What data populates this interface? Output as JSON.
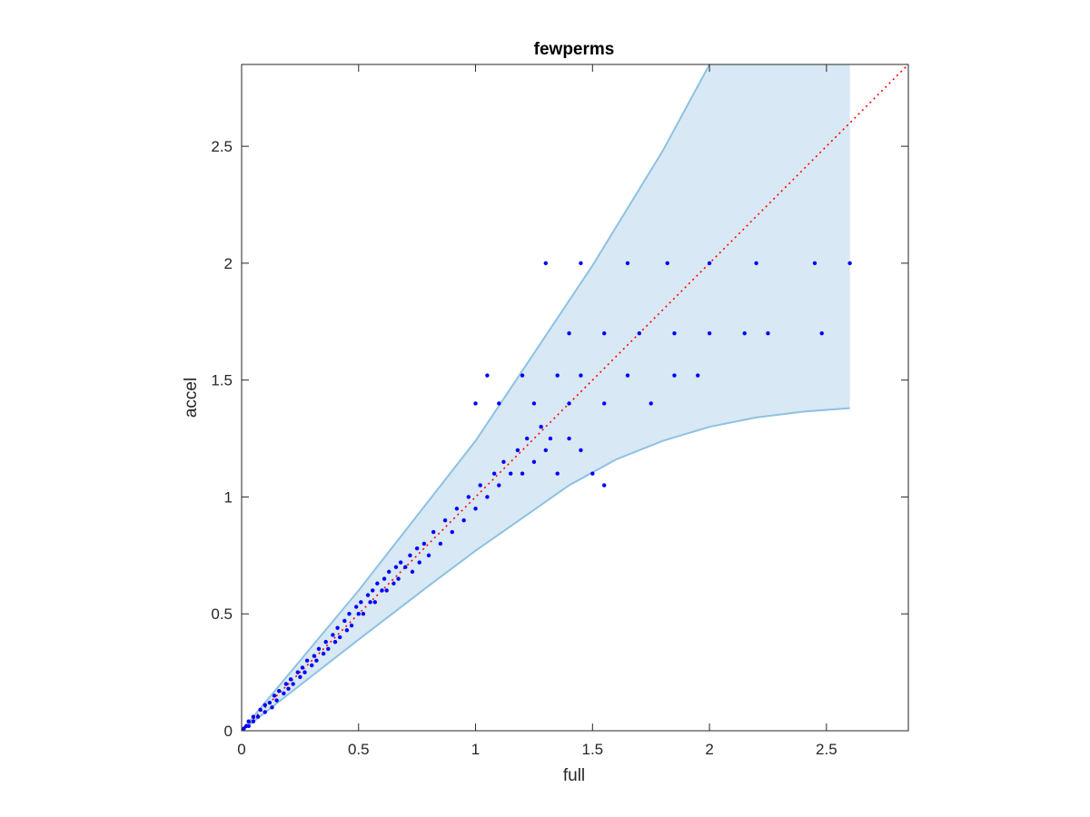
{
  "chart_data": {
    "type": "scatter",
    "title": "fewperms",
    "xlabel": "full",
    "ylabel": "accel",
    "xlim": [
      0,
      2.85
    ],
    "ylim": [
      0,
      2.85
    ],
    "xticks": [
      0,
      0.5,
      1,
      1.5,
      2,
      2.5
    ],
    "yticks": [
      0,
      0.5,
      1,
      1.5,
      2,
      2.5
    ],
    "xtick_labels": [
      "0",
      "0.5",
      "1",
      "1.5",
      "2",
      "2.5"
    ],
    "ytick_labels": [
      "0",
      "0.5",
      "1",
      "1.5",
      "2",
      "2.5"
    ],
    "grid": false,
    "colors": {
      "points": "#0000ff",
      "band_fill": "#d8e8f4",
      "band_edge": "#8ec1e3",
      "reference_line": "#ff0000",
      "axes": "#262626"
    },
    "band": {
      "upper": [
        [
          0,
          0
        ],
        [
          0.5,
          0.6
        ],
        [
          1,
          1.24
        ],
        [
          1.5,
          1.99
        ],
        [
          1.8,
          2.48
        ],
        [
          2.0,
          2.85
        ],
        [
          2.6,
          2.85
        ]
      ],
      "lower": [
        [
          0,
          0
        ],
        [
          0.5,
          0.39
        ],
        [
          0.8,
          0.62
        ],
        [
          1.0,
          0.77
        ],
        [
          1.2,
          0.91
        ],
        [
          1.4,
          1.05
        ],
        [
          1.6,
          1.16
        ],
        [
          1.8,
          1.24
        ],
        [
          2.0,
          1.3
        ],
        [
          2.2,
          1.34
        ],
        [
          2.4,
          1.365
        ],
        [
          2.6,
          1.38
        ]
      ],
      "x_end": 2.6
    },
    "reference_line": {
      "style": "dotted",
      "from": [
        0,
        0
      ],
      "to": [
        2.85,
        2.85
      ]
    },
    "series": [
      {
        "marker": "dot",
        "points": [
          [
            0.01,
            0.01
          ],
          [
            0.02,
            0.02
          ],
          [
            0.03,
            0.02
          ],
          [
            0.03,
            0.04
          ],
          [
            0.05,
            0.04
          ],
          [
            0.05,
            0.06
          ],
          [
            0.07,
            0.06
          ],
          [
            0.08,
            0.09
          ],
          [
            0.1,
            0.08
          ],
          [
            0.1,
            0.11
          ],
          [
            0.12,
            0.12
          ],
          [
            0.13,
            0.1
          ],
          [
            0.14,
            0.15
          ],
          [
            0.15,
            0.13
          ],
          [
            0.16,
            0.17
          ],
          [
            0.18,
            0.16
          ],
          [
            0.19,
            0.2
          ],
          [
            0.2,
            0.18
          ],
          [
            0.21,
            0.22
          ],
          [
            0.22,
            0.2
          ],
          [
            0.24,
            0.25
          ],
          [
            0.25,
            0.23
          ],
          [
            0.26,
            0.27
          ],
          [
            0.27,
            0.25
          ],
          [
            0.28,
            0.3
          ],
          [
            0.3,
            0.28
          ],
          [
            0.31,
            0.32
          ],
          [
            0.32,
            0.3
          ],
          [
            0.33,
            0.35
          ],
          [
            0.35,
            0.33
          ],
          [
            0.36,
            0.38
          ],
          [
            0.37,
            0.35
          ],
          [
            0.39,
            0.41
          ],
          [
            0.4,
            0.38
          ],
          [
            0.41,
            0.44
          ],
          [
            0.42,
            0.4
          ],
          [
            0.44,
            0.47
          ],
          [
            0.45,
            0.43
          ],
          [
            0.46,
            0.5
          ],
          [
            0.47,
            0.45
          ],
          [
            0.49,
            0.53
          ],
          [
            0.5,
            0.5
          ],
          [
            0.51,
            0.55
          ],
          [
            0.52,
            0.5
          ],
          [
            0.54,
            0.58
          ],
          [
            0.55,
            0.55
          ],
          [
            0.56,
            0.6
          ],
          [
            0.57,
            0.55
          ],
          [
            0.58,
            0.63
          ],
          [
            0.6,
            0.6
          ],
          [
            0.61,
            0.65
          ],
          [
            0.62,
            0.6
          ],
          [
            0.63,
            0.68
          ],
          [
            0.65,
            0.63
          ],
          [
            0.66,
            0.7
          ],
          [
            0.67,
            0.65
          ],
          [
            0.68,
            0.72
          ],
          [
            0.7,
            0.7
          ],
          [
            0.72,
            0.75
          ],
          [
            0.73,
            0.68
          ],
          [
            0.75,
            0.78
          ],
          [
            0.76,
            0.72
          ],
          [
            0.78,
            0.8
          ],
          [
            0.8,
            0.75
          ],
          [
            0.82,
            0.85
          ],
          [
            0.85,
            0.8
          ],
          [
            0.87,
            0.9
          ],
          [
            0.9,
            0.85
          ],
          [
            0.92,
            0.95
          ],
          [
            0.95,
            0.9
          ],
          [
            0.97,
            1.0
          ],
          [
            1.0,
            0.95
          ],
          [
            1.02,
            1.05
          ],
          [
            1.05,
            1.0
          ],
          [
            1.08,
            1.1
          ],
          [
            1.1,
            1.05
          ],
          [
            1.12,
            1.15
          ],
          [
            1.15,
            1.1
          ],
          [
            1.18,
            1.2
          ],
          [
            1.2,
            1.1
          ],
          [
            1.22,
            1.25
          ],
          [
            1.25,
            1.15
          ],
          [
            1.28,
            1.3
          ],
          [
            1.3,
            1.2
          ],
          [
            1.32,
            1.25
          ],
          [
            1.35,
            1.1
          ],
          [
            1.4,
            1.25
          ],
          [
            1.45,
            1.2
          ],
          [
            1.5,
            1.1
          ],
          [
            1.55,
            1.05
          ],
          [
            1.0,
            1.4
          ],
          [
            1.05,
            1.52
          ],
          [
            1.1,
            1.4
          ],
          [
            1.2,
            1.52
          ],
          [
            1.25,
            1.4
          ],
          [
            1.35,
            1.52
          ],
          [
            1.4,
            1.4
          ],
          [
            1.45,
            1.52
          ],
          [
            1.55,
            1.4
          ],
          [
            1.65,
            1.52
          ],
          [
            1.75,
            1.4
          ],
          [
            1.85,
            1.52
          ],
          [
            1.95,
            1.52
          ],
          [
            1.3,
            2.0
          ],
          [
            1.45,
            2.0
          ],
          [
            1.65,
            2.0
          ],
          [
            1.82,
            2.0
          ],
          [
            2.0,
            2.0
          ],
          [
            2.2,
            2.0
          ],
          [
            2.45,
            2.0
          ],
          [
            2.6,
            2.0
          ],
          [
            1.4,
            1.7
          ],
          [
            1.55,
            1.7
          ],
          [
            1.7,
            1.7
          ],
          [
            1.85,
            1.7
          ],
          [
            2.0,
            1.7
          ],
          [
            2.15,
            1.7
          ],
          [
            2.25,
            1.7
          ],
          [
            2.48,
            1.7
          ]
        ]
      }
    ]
  }
}
